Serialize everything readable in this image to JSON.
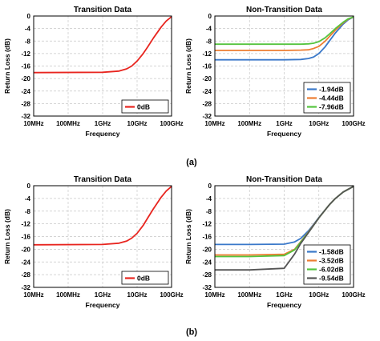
{
  "figure": {
    "captions": [
      "(a)",
      "(b)"
    ]
  },
  "chart_data": [
    {
      "type": "line",
      "title": "Transition Data",
      "xlabel": "Frequency",
      "ylabel": "Return Loss (dB)",
      "x_scale": "log",
      "xlim": [
        "10MHz",
        "100GHz"
      ],
      "ylim": [
        -32,
        0
      ],
      "x_ticks": [
        "10MHz",
        "100MHz",
        "1GHz",
        "10GHz",
        "100GHz"
      ],
      "y_ticks": [
        "0",
        "-4",
        "-8",
        "-12",
        "-16",
        "-20",
        "-24",
        "-28",
        "-32"
      ],
      "grid": true,
      "legend_position": "bottom-right",
      "series": [
        {
          "name": "0dB",
          "color": "#e8251f",
          "x": [
            "10MHz",
            "1GHz",
            "3GHz",
            "5GHz",
            "7GHz",
            "10GHz",
            "15GHz",
            "20GHz",
            "30GHz",
            "50GHz",
            "70GHz",
            "100GHz"
          ],
          "y": [
            -18.1,
            -18.0,
            -17.6,
            -16.9,
            -16.0,
            -14.4,
            -12.0,
            -10.0,
            -7.0,
            -3.5,
            -1.6,
            -0.2
          ]
        }
      ]
    },
    {
      "type": "line",
      "title": "Non-Transition Data",
      "xlabel": "Frequency",
      "ylabel": "Return Loss (dB)",
      "x_scale": "log",
      "xlim": [
        "10MHz",
        "100GHz"
      ],
      "ylim": [
        -32,
        0
      ],
      "x_ticks": [
        "10MHz",
        "100MHz",
        "1GHz",
        "10GHz",
        "100GHz"
      ],
      "y_ticks": [
        "0",
        "-4",
        "-8",
        "-12",
        "-16",
        "-20",
        "-24",
        "-28",
        "-32"
      ],
      "grid": true,
      "legend_position": "bottom-right",
      "series": [
        {
          "name": "-1.94dB",
          "color": "#3a78c9",
          "x": [
            "10MHz",
            "1GHz",
            "3GHz",
            "5GHz",
            "7GHz",
            "10GHz",
            "15GHz",
            "20GHz",
            "30GHz",
            "50GHz",
            "70GHz",
            "100GHz"
          ],
          "y": [
            -14.0,
            -14.0,
            -13.9,
            -13.6,
            -13.1,
            -12.0,
            -9.9,
            -8.0,
            -5.4,
            -2.6,
            -1.2,
            -0.3
          ]
        },
        {
          "name": "-4.44dB",
          "color": "#ed7d31",
          "x": [
            "10MHz",
            "1GHz",
            "3GHz",
            "5GHz",
            "7GHz",
            "10GHz",
            "15GHz",
            "20GHz",
            "30GHz",
            "50GHz",
            "70GHz",
            "100GHz"
          ],
          "y": [
            -11.0,
            -11.0,
            -10.9,
            -10.8,
            -10.4,
            -9.7,
            -8.1,
            -6.6,
            -4.5,
            -2.2,
            -1.0,
            -0.3
          ]
        },
        {
          "name": "-7.96dB",
          "color": "#55c43f",
          "x": [
            "10MHz",
            "1GHz",
            "3GHz",
            "5GHz",
            "7GHz",
            "10GHz",
            "15GHz",
            "20GHz",
            "30GHz",
            "50GHz",
            "70GHz",
            "100GHz"
          ],
          "y": [
            -9.0,
            -9.0,
            -9.0,
            -8.9,
            -8.7,
            -8.2,
            -7.0,
            -5.8,
            -4.0,
            -2.0,
            -0.9,
            -0.3
          ]
        }
      ]
    },
    {
      "type": "line",
      "title": "Transition Data",
      "xlabel": "Frequency",
      "ylabel": "Return Loss (dB)",
      "x_scale": "log",
      "xlim": [
        "10MHz",
        "100GHz"
      ],
      "ylim": [
        -32,
        0
      ],
      "x_ticks": [
        "10MHz",
        "100MHz",
        "1GHz",
        "10GHz",
        "100GHz"
      ],
      "y_ticks": [
        "0",
        "-4",
        "-8",
        "-12",
        "-16",
        "-20",
        "-24",
        "-28",
        "-32"
      ],
      "grid": true,
      "legend_position": "bottom-right",
      "series": [
        {
          "name": "0dB",
          "color": "#e8251f",
          "x": [
            "10MHz",
            "1GHz",
            "3GHz",
            "5GHz",
            "7GHz",
            "10GHz",
            "15GHz",
            "20GHz",
            "30GHz",
            "50GHz",
            "70GHz",
            "100GHz"
          ],
          "y": [
            -18.6,
            -18.5,
            -18.1,
            -17.4,
            -16.5,
            -15.0,
            -12.5,
            -10.3,
            -7.2,
            -3.6,
            -1.7,
            -0.2
          ]
        }
      ]
    },
    {
      "type": "line",
      "title": "Non-Transition Data",
      "xlabel": "Frequency",
      "ylabel": "Return Loss (dB)",
      "x_scale": "log",
      "xlim": [
        "10MHz",
        "100GHz"
      ],
      "ylim": [
        -32,
        0
      ],
      "x_ticks": [
        "10MHz",
        "100MHz",
        "1GHz",
        "10GHz",
        "100GHz"
      ],
      "y_ticks": [
        "0",
        "-4",
        "-8",
        "-12",
        "-16",
        "-20",
        "-24",
        "-28",
        "-32"
      ],
      "grid": true,
      "legend_position": "bottom-right",
      "series": [
        {
          "name": "-1.58dB",
          "color": "#3a78c9",
          "x": [
            "10MHz",
            "100MHz",
            "1GHz",
            "2GHz",
            "3GHz",
            "5GHz",
            "7GHz",
            "10GHz",
            "20GHz",
            "30GHz",
            "50GHz",
            "100GHz"
          ],
          "y": [
            -18.5,
            -18.5,
            -18.4,
            -17.7,
            -16.6,
            -14.2,
            -12.2,
            -10.0,
            -6.0,
            -4.0,
            -2.0,
            -0.2
          ]
        },
        {
          "name": "-3.52dB",
          "color": "#ed7d31",
          "x": [
            "10MHz",
            "100MHz",
            "1GHz",
            "2GHz",
            "3GHz",
            "5GHz",
            "7GHz",
            "10GHz",
            "20GHz",
            "30GHz",
            "50GHz",
            "100GHz"
          ],
          "y": [
            -21.8,
            -21.8,
            -21.6,
            -20.0,
            -17.6,
            -14.6,
            -12.4,
            -10.1,
            -6.0,
            -4.0,
            -2.0,
            -0.2
          ]
        },
        {
          "name": "-6.02dB",
          "color": "#55c43f",
          "x": [
            "10MHz",
            "100MHz",
            "1GHz",
            "2GHz",
            "3GHz",
            "5GHz",
            "7GHz",
            "10GHz",
            "20GHz",
            "30GHz",
            "50GHz",
            "100GHz"
          ],
          "y": [
            -22.3,
            -22.3,
            -22.0,
            -20.2,
            -17.8,
            -14.7,
            -12.5,
            -10.1,
            -6.0,
            -4.0,
            -2.0,
            -0.2
          ]
        },
        {
          "name": "-9.54dB",
          "color": "#555555",
          "x": [
            "10MHz",
            "100MHz",
            "1GHz",
            "2GHz",
            "3GHz",
            "5GHz",
            "7GHz",
            "10GHz",
            "20GHz",
            "30GHz",
            "50GHz",
            "100GHz"
          ],
          "y": [
            -26.5,
            -26.5,
            -26.0,
            -21.5,
            -18.2,
            -14.8,
            -12.5,
            -10.1,
            -6.0,
            -4.0,
            -2.0,
            -0.2
          ]
        }
      ]
    }
  ]
}
